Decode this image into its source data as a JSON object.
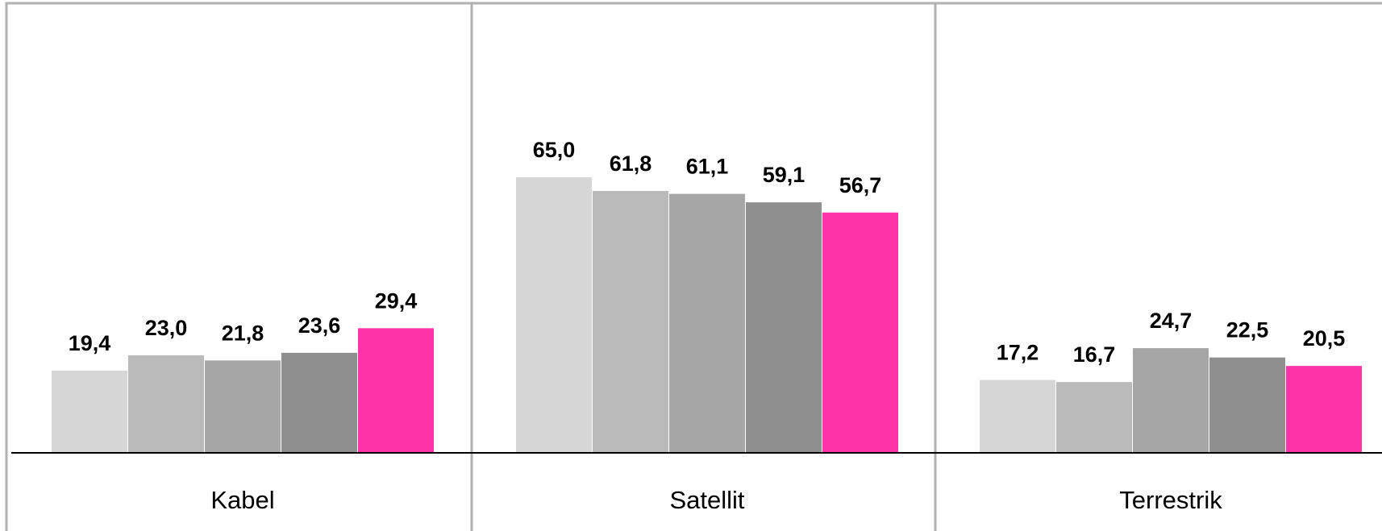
{
  "chart_data": {
    "type": "bar",
    "categories": [
      "Kabel",
      "Satellit",
      "Terrestrik"
    ],
    "series": [
      {
        "values": [
          19.4,
          65.0,
          17.2
        ],
        "labels": [
          "19,4",
          "65,0",
          "17,2"
        ],
        "color": "#d6d6d6"
      },
      {
        "values": [
          23.0,
          61.8,
          16.7
        ],
        "labels": [
          "23,0",
          "61,8",
          "16,7"
        ],
        "color": "#bababa"
      },
      {
        "values": [
          21.8,
          61.1,
          24.7
        ],
        "labels": [
          "21,8",
          "61,1",
          "24,7"
        ],
        "color": "#a6a6a6"
      },
      {
        "values": [
          23.6,
          59.1,
          22.5
        ],
        "labels": [
          "23,6",
          "59,1",
          "22,5"
        ],
        "color": "#8f8f8f"
      },
      {
        "values": [
          29.4,
          56.7,
          20.5
        ],
        "labels": [
          "29,4",
          "56,7",
          "20,5"
        ],
        "color": "#ff33a8"
      }
    ],
    "ylim": [
      0,
      100
    ],
    "grid": false,
    "legend": "none",
    "title": "",
    "xlabel": "",
    "ylabel": ""
  }
}
